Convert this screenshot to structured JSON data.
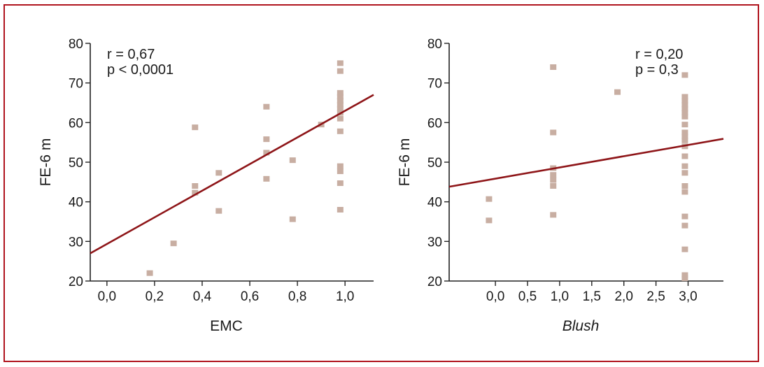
{
  "figure": {
    "border_color": "#b0141e",
    "point_color": "#c8aea2",
    "line_color": "#8e1518"
  },
  "chart_data": [
    {
      "type": "scatter",
      "title": "",
      "xlabel": "EMC",
      "ylabel": "FE-6 m",
      "xlim": [
        -0.07,
        1.12
      ],
      "ylim": [
        20,
        80
      ],
      "xticks": [
        0.0,
        0.2,
        0.4,
        0.6,
        0.8,
        1.0
      ],
      "xtick_labels": [
        "0,0",
        "0,2",
        "0,4",
        "0,6",
        "0,8",
        "1,0"
      ],
      "yticks": [
        20,
        30,
        40,
        50,
        60,
        70,
        80
      ],
      "ytick_labels": [
        "20",
        "30",
        "40",
        "50",
        "60",
        "70",
        "80"
      ],
      "annotation": [
        "r = 0,67",
        "p < 0,0001"
      ],
      "points": [
        {
          "x": 0.18,
          "y": 22
        },
        {
          "x": 0.28,
          "y": 29.5
        },
        {
          "x": 0.37,
          "y": 58.8
        },
        {
          "x": 0.37,
          "y": 44
        },
        {
          "x": 0.37,
          "y": 42.3
        },
        {
          "x": 0.47,
          "y": 47.3
        },
        {
          "x": 0.47,
          "y": 37.7
        },
        {
          "x": 0.67,
          "y": 64
        },
        {
          "x": 0.67,
          "y": 55.8
        },
        {
          "x": 0.67,
          "y": 52.4
        },
        {
          "x": 0.67,
          "y": 45.8
        },
        {
          "x": 0.78,
          "y": 50.5
        },
        {
          "x": 0.78,
          "y": 35.6
        },
        {
          "x": 0.9,
          "y": 59.5
        },
        {
          "x": 0.98,
          "y": 75
        },
        {
          "x": 0.98,
          "y": 73
        },
        {
          "x": 0.98,
          "y": 67.5
        },
        {
          "x": 0.98,
          "y": 66.5
        },
        {
          "x": 0.98,
          "y": 65.5
        },
        {
          "x": 0.98,
          "y": 64.5
        },
        {
          "x": 0.98,
          "y": 63.5
        },
        {
          "x": 0.98,
          "y": 62.5
        },
        {
          "x": 0.98,
          "y": 61
        },
        {
          "x": 0.98,
          "y": 57.8
        },
        {
          "x": 0.98,
          "y": 49
        },
        {
          "x": 0.98,
          "y": 47.7
        },
        {
          "x": 0.98,
          "y": 44.7
        },
        {
          "x": 0.98,
          "y": 38
        }
      ],
      "regression": {
        "x1": -0.07,
        "y1": 27,
        "x2": 1.12,
        "y2": 67
      }
    },
    {
      "type": "scatter",
      "title": "",
      "xlabel": "Blush",
      "xlabel_italic": true,
      "ylabel": "FE-6 m",
      "xlim": [
        -0.72,
        3.55
      ],
      "ylim": [
        20,
        80
      ],
      "xticks": [
        0.0,
        0.5,
        1.0,
        1.5,
        2.0,
        2.5,
        3.0
      ],
      "xtick_labels": [
        "0,0",
        "0,5",
        "1,0",
        "1,5",
        "2,0",
        "2,5",
        "3,0"
      ],
      "yticks": [
        20,
        30,
        40,
        50,
        60,
        70,
        80
      ],
      "ytick_labels": [
        "20",
        "30",
        "40",
        "50",
        "60",
        "70",
        "80"
      ],
      "annotation": [
        "r = 0,20",
        "p = 0,3"
      ],
      "points": [
        {
          "x": -0.1,
          "y": 40.7
        },
        {
          "x": -0.1,
          "y": 35.3
        },
        {
          "x": 0.9,
          "y": 74
        },
        {
          "x": 0.9,
          "y": 57.5
        },
        {
          "x": 0.9,
          "y": 48.5
        },
        {
          "x": 0.9,
          "y": 46.8
        },
        {
          "x": 0.9,
          "y": 45.5
        },
        {
          "x": 0.9,
          "y": 44
        },
        {
          "x": 0.9,
          "y": 36.7
        },
        {
          "x": 1.9,
          "y": 67.7
        },
        {
          "x": 2.95,
          "y": 72
        },
        {
          "x": 2.95,
          "y": 66.5
        },
        {
          "x": 2.95,
          "y": 65.5
        },
        {
          "x": 2.95,
          "y": 64.5
        },
        {
          "x": 2.95,
          "y": 63.5
        },
        {
          "x": 2.95,
          "y": 62.5
        },
        {
          "x": 2.95,
          "y": 61.5
        },
        {
          "x": 2.95,
          "y": 59.5
        },
        {
          "x": 2.95,
          "y": 57.5
        },
        {
          "x": 2.95,
          "y": 56.5
        },
        {
          "x": 2.95,
          "y": 55.5
        },
        {
          "x": 2.95,
          "y": 54
        },
        {
          "x": 2.95,
          "y": 51.5
        },
        {
          "x": 2.95,
          "y": 49
        },
        {
          "x": 2.95,
          "y": 47.3
        },
        {
          "x": 2.95,
          "y": 44
        },
        {
          "x": 2.95,
          "y": 42.5
        },
        {
          "x": 2.95,
          "y": 36.3
        },
        {
          "x": 2.95,
          "y": 34
        },
        {
          "x": 2.95,
          "y": 28
        },
        {
          "x": 2.95,
          "y": 21.5
        },
        {
          "x": 2.95,
          "y": 20.7
        }
      ],
      "regression": {
        "x1": -0.72,
        "y1": 43.8,
        "x2": 3.55,
        "y2": 55.9
      }
    }
  ]
}
